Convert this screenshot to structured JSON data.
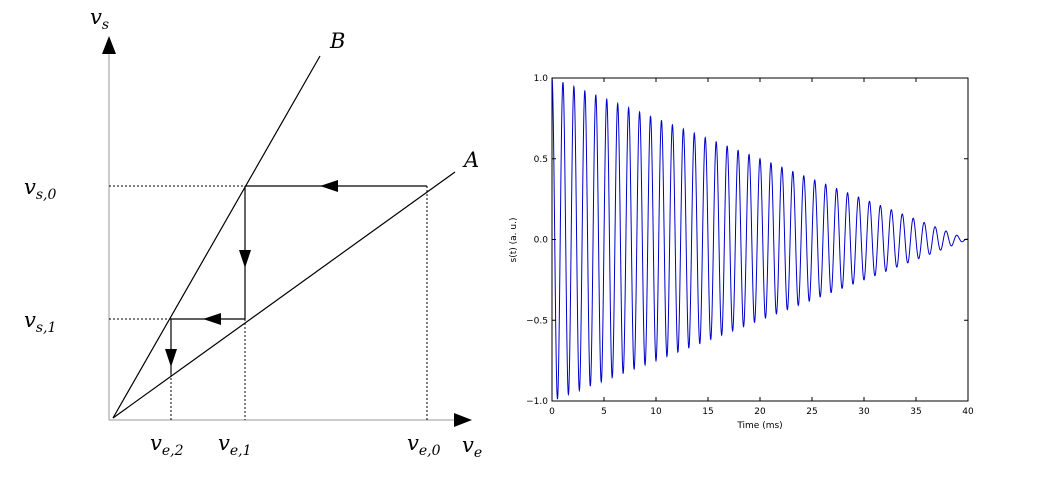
{
  "left_diagram": {
    "y_axis_label": "v",
    "y_axis_sub": "s",
    "x_axis_label": "v",
    "x_axis_sub": "e",
    "line_a_label": "A",
    "line_b_label": "B",
    "y_ticks": [
      {
        "main": "v",
        "sub": "s,0"
      },
      {
        "main": "v",
        "sub": "s,1"
      }
    ],
    "x_ticks": [
      {
        "main": "v",
        "sub": "e,2"
      },
      {
        "main": "v",
        "sub": "e,1"
      },
      {
        "main": "v",
        "sub": "e,0"
      }
    ]
  },
  "chart_data": {
    "type": "line",
    "title": "",
    "xlabel": "Time (ms)",
    "ylabel": "s(t) (a. u.)",
    "xlim": [
      0,
      40
    ],
    "ylim": [
      -1.0,
      1.0
    ],
    "xticks": [
      "0",
      "5",
      "10",
      "15",
      "20",
      "25",
      "30",
      "35",
      "40"
    ],
    "yticks": [
      "1.0",
      "0.5",
      "0.0",
      "−0.5",
      "−1.0"
    ],
    "series": [
      {
        "color": "#0000cc",
        "model": "damped cosine",
        "amplitude": 1.0,
        "frequency_khz": 0.95,
        "linear_decay_to_zero_ms": 40
      }
    ]
  }
}
